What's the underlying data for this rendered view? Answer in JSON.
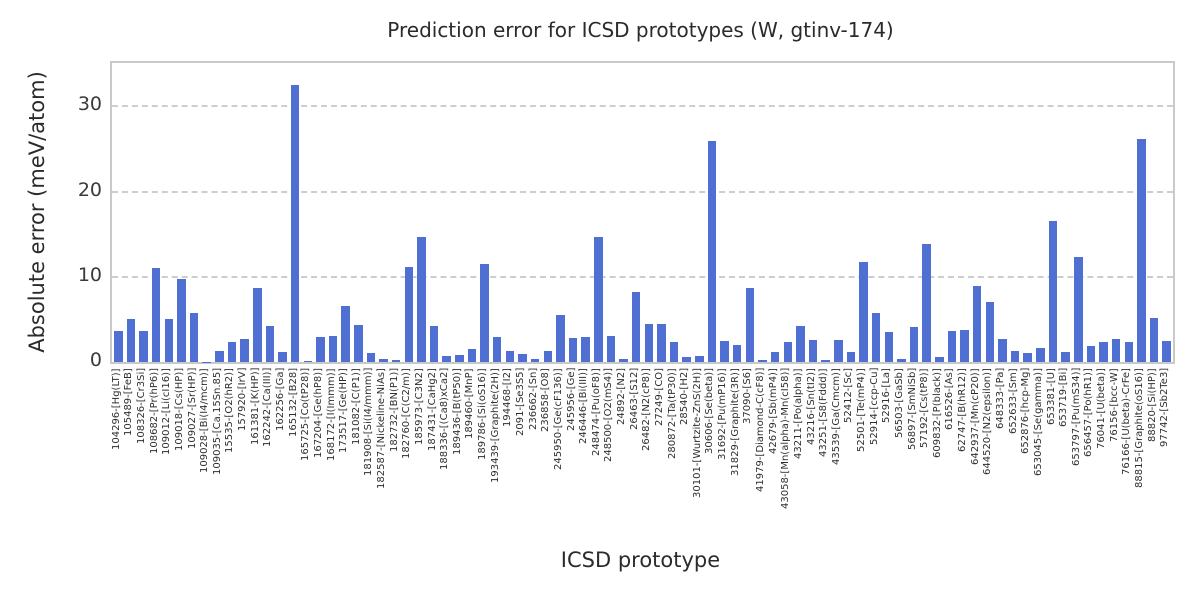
{
  "figure": {
    "title": "Prediction error for ICSD prototypes (W, gtinv-174)",
    "xlabel": "ICSD prototype",
    "ylabel": "Absolute error (meV/atom)"
  },
  "chart_data": {
    "type": "bar",
    "title": "Prediction error for ICSD prototypes (W, gtinv-174)",
    "xlabel": "ICSD prototype",
    "ylabel": "Absolute error (meV/atom)",
    "ylim": [
      0,
      35.1
    ],
    "yticks": [
      0,
      10,
      20,
      30
    ],
    "grid": "horizontal-dashed",
    "legend": "none",
    "bar_color": "#4f6fd2",
    "grid_color": "#cdcdcd",
    "frame_color": "#c9c9c9",
    "categories": [
      "104296-[Hg(LT)]",
      "105489-[FeB]",
      "108326-[Cr3Si]",
      "108682-[Pr(hP6)]",
      "109012-[Li(cI16)]",
      "109018-[Cs(HP)]",
      "109027-[Sr(HP)]",
      "109028-[Bi(I4/mcm)]",
      "109035-[Ca.15Sn.85]",
      "15535-[O2(hR2)]",
      "157920-[IrV]",
      "161381-[K(HP)]",
      "162242-[Ca(III)]",
      "162256-[Ga]",
      "165132-[B28]",
      "165725-[Co(tP28)]",
      "167204-[Ge(hP8)]",
      "168172-[I(Immm)]",
      "173517-[Ge(HP)]",
      "181082-[C(P1)]",
      "181908-[Si(I4/mmm)]",
      "182587-[Nickeline-NiAs]",
      "182732-[BN(P1)]",
      "182760-[C(C2/m)]",
      "185973-[C3N2]",
      "187431-[CaHg2]",
      "188336-[(Ca8)xCa2]",
      "189436-[B(tP50)]",
      "189460-[MnP]",
      "189786-[Si(oS16)]",
      "193439-[Graphite(2H)]",
      "194468-[I2]",
      "2091-[Se3S5]",
      "236662-[Sn]",
      "236858-[O8]",
      "245950-[Ge(cF136)]",
      "245956-[Ge]",
      "246446-[Bi(III)]",
      "248474-[Pu(oF8)]",
      "248500-[O2(mS4)]",
      "24892-[N2]",
      "26463-[S12]",
      "26482-[N2(cP8)]",
      "27249-[CO]",
      "280872-[Ta(tP30)]",
      "28540-[H2]",
      "30101-[Wurtzite-ZnS(2H)]",
      "30606-[Se(beta)]",
      "31692-[Pu(mP16)]",
      "31829-[Graphite(3R)]",
      "37090-[S6]",
      "41979-[Diamond-C(cF8)]",
      "42679-[Sb(mP4)]",
      "43058-[Mn(alpha)-Mn(cI58)]",
      "43211-[Po(alpha)]",
      "43216-[Sn(tI2)]",
      "43251-[S8(Fddd)]",
      "43539-[Ga(Cmcm)]",
      "52412-[Sc]",
      "52501-[Te(mP4)]",
      "52914-[ccp-Cu]",
      "52916-[La]",
      "56503-[GaSb]",
      "56897-[SmNiSb]",
      "57192-[Cs(tP8)]",
      "609832-[P(black)]",
      "616526-[As]",
      "62747-[B(hR12)]",
      "642937-[Mn(cP20)]",
      "644520-[N2(epsilon)]",
      "648333-[Pa]",
      "652633-[Sm]",
      "652876-[hcp-Mg]",
      "653045-[Se(gamma)]",
      "653381-[U]",
      "653719-[Bi]",
      "653797-[Pu(mS34)]",
      "656457-[Po(hR1)]",
      "76041-[U(beta)]",
      "76156-[bcc-W]",
      "76166-[U(beta)-CrFe]",
      "88815-[Graphite(oS16)]",
      "88820-[Si(HP)]",
      "97742-[Sb2Te3]"
    ],
    "values": [
      3.6,
      5.0,
      3.6,
      11.0,
      5.0,
      9.7,
      5.7,
      0.05,
      1.3,
      2.3,
      2.7,
      8.7,
      4.2,
      1.2,
      32.5,
      0.15,
      2.9,
      3.0,
      6.6,
      4.4,
      1.0,
      0.35,
      0.2,
      11.2,
      14.7,
      4.2,
      0.75,
      0.8,
      1.5,
      11.5,
      2.9,
      1.3,
      0.9,
      0.35,
      1.3,
      5.5,
      2.8,
      2.9,
      14.7,
      3.0,
      0.3,
      8.2,
      4.5,
      4.5,
      2.3,
      0.6,
      0.65,
      25.9,
      2.5,
      2.0,
      8.7,
      0.2,
      1.2,
      2.3,
      4.2,
      2.6,
      0.2,
      2.6,
      1.2,
      11.7,
      5.7,
      3.5,
      0.3,
      4.1,
      13.8,
      0.6,
      3.6,
      3.8,
      8.9,
      7.1,
      2.7,
      1.3,
      1.1,
      1.7,
      16.5,
      1.2,
      12.3,
      1.9,
      2.3,
      2.7,
      2.3,
      26.2,
      5.2,
      2.5
    ]
  }
}
